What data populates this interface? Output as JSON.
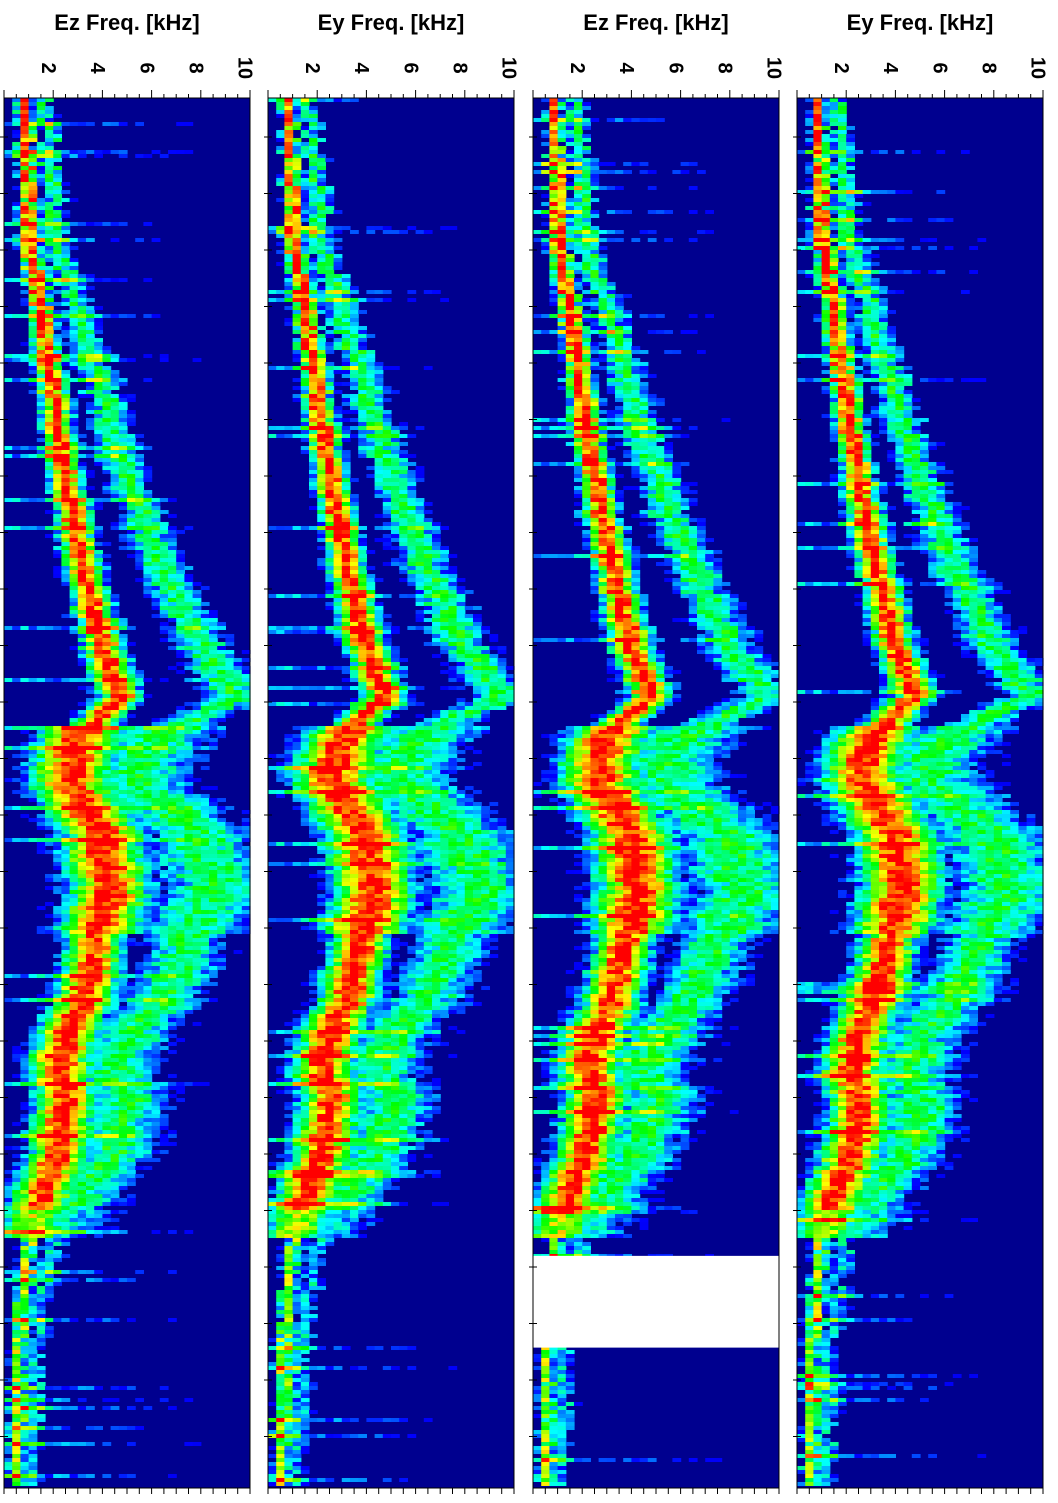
{
  "chart_data": [
    {
      "type": "heatmap",
      "title": "Ez Freq. [kHz]",
      "xlim": [
        0,
        10
      ],
      "tick_labels": [
        "2",
        "4",
        "6",
        "8",
        "10"
      ],
      "tick_values": [
        2,
        4,
        6,
        8,
        10
      ],
      "gap": null
    },
    {
      "type": "heatmap",
      "title": "Ey Freq. [kHz]",
      "xlim": [
        0,
        10
      ],
      "tick_labels": [
        "2",
        "4",
        "6",
        "8",
        "10"
      ],
      "tick_values": [
        2,
        4,
        6,
        8,
        10
      ],
      "gap": null
    },
    {
      "type": "heatmap",
      "title": "Ez Freq. [kHz]",
      "xlim": [
        0,
        10
      ],
      "tick_labels": [
        "2",
        "4",
        "6",
        "8",
        "10"
      ],
      "tick_values": [
        2,
        4,
        6,
        8,
        10
      ],
      "gap": [
        0.833,
        0.899
      ]
    },
    {
      "type": "heatmap",
      "title": "Ey Freq. [kHz]",
      "xlim": [
        0,
        10
      ],
      "tick_labels": [
        "2",
        "4",
        "6",
        "8",
        "10"
      ],
      "tick_values": [
        2,
        4,
        6,
        8,
        10
      ],
      "gap": null
    }
  ],
  "colors": {
    "background": "#00008f",
    "colormap": [
      "#00008f",
      "#0000ff",
      "#00ffff",
      "#00ff00",
      "#ffff00",
      "#ff0000"
    ]
  }
}
